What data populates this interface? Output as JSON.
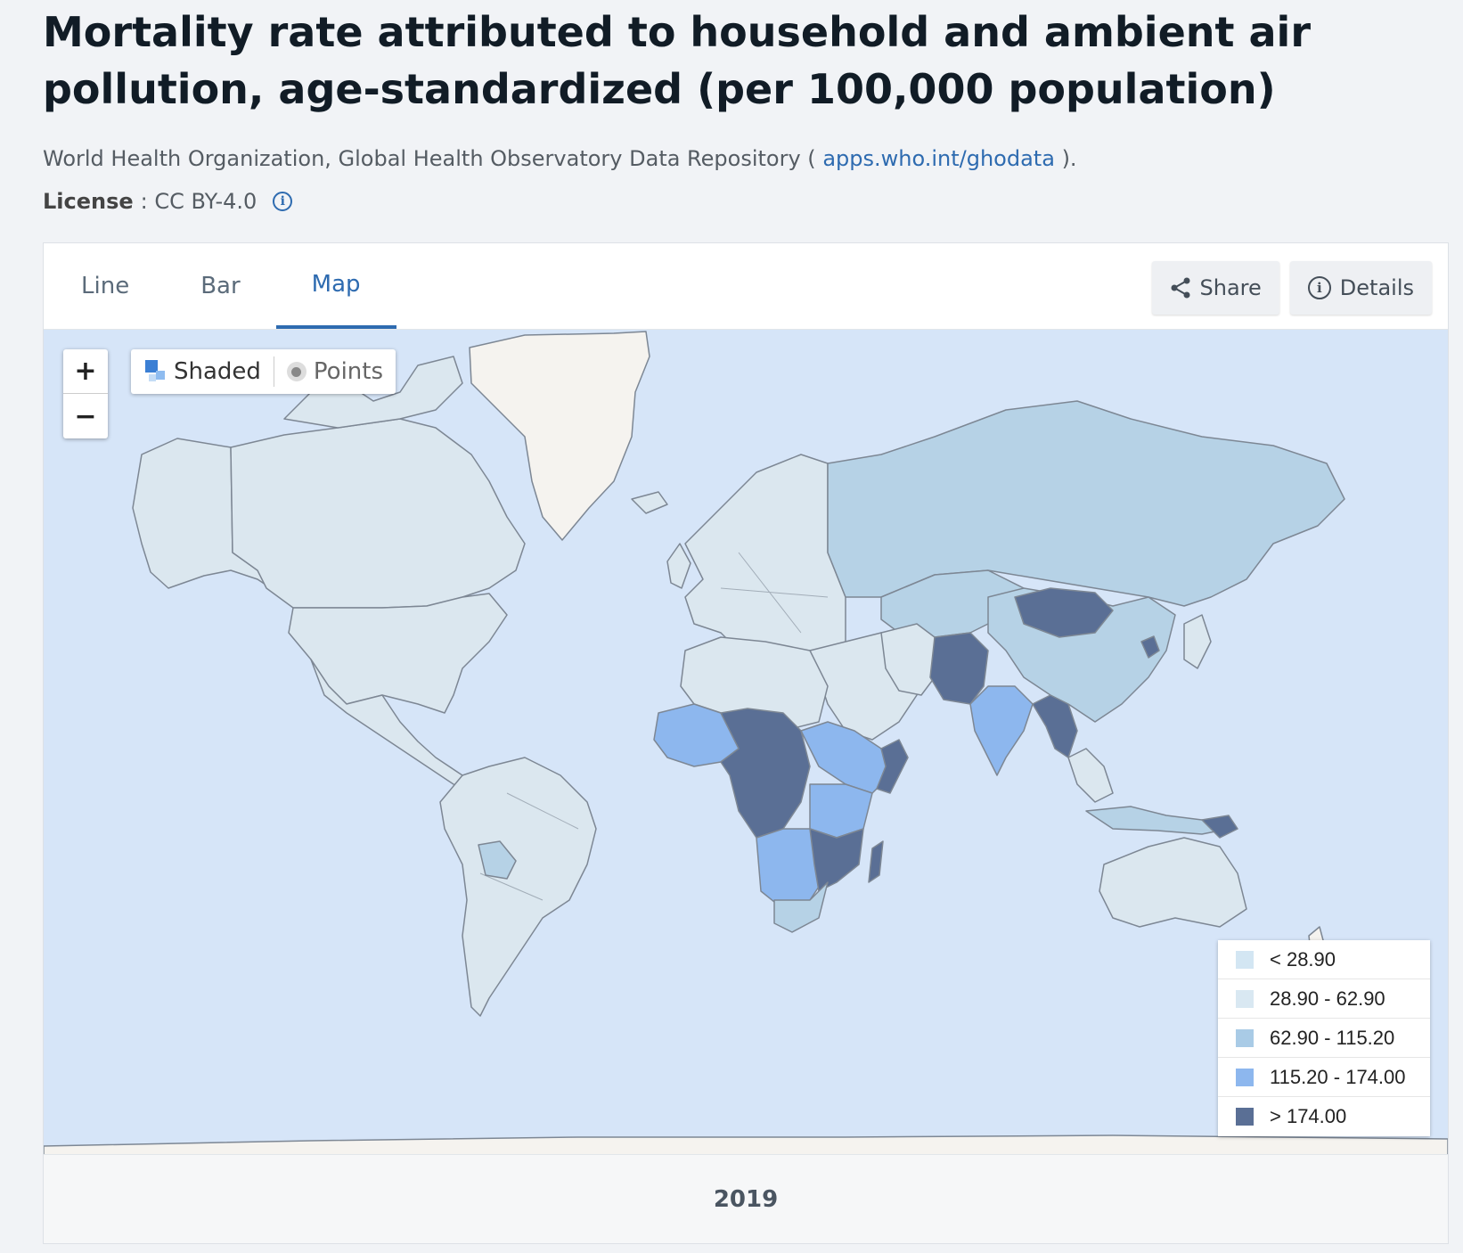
{
  "page": {
    "title": "Mortality rate attributed to household and ambient air pollution, age-standardized (per 100,000 population)",
    "source_text": "World Health Organization, Global Health Observatory Data Repository (",
    "source_link": "apps.who.int/ghodata",
    "source_end": ").",
    "license_label": "License",
    "license_value": ": CC BY-4.0"
  },
  "tabs": [
    {
      "label": "Line",
      "active": false
    },
    {
      "label": "Bar",
      "active": false
    },
    {
      "label": "Map",
      "active": true
    }
  ],
  "actions": {
    "share": "Share",
    "details": "Details"
  },
  "map": {
    "zoom_in": "+",
    "zoom_out": "−",
    "mode_shaded": "Shaded",
    "mode_points": "Points",
    "year": "2019"
  },
  "legend": [
    {
      "label": "< 28.90",
      "color": "#d3e6f3"
    },
    {
      "label": "28.90 - 62.90",
      "color": "#d9e8f2"
    },
    {
      "label": "62.90 - 115.20",
      "color": "#a9cbe6"
    },
    {
      "label": "115.20 - 174.00",
      "color": "#8db7ee"
    },
    {
      "label": "> 174.00",
      "color": "#5a6f95"
    }
  ],
  "colors": {
    "ocean": "#d6e5f8",
    "nodata": "#f5f3ef",
    "low": "#dbe7ef",
    "mid": "#b6d2e6",
    "high": "#8db7ee",
    "vhigh": "#5a6f95",
    "accent": "#2e6bb0"
  }
}
